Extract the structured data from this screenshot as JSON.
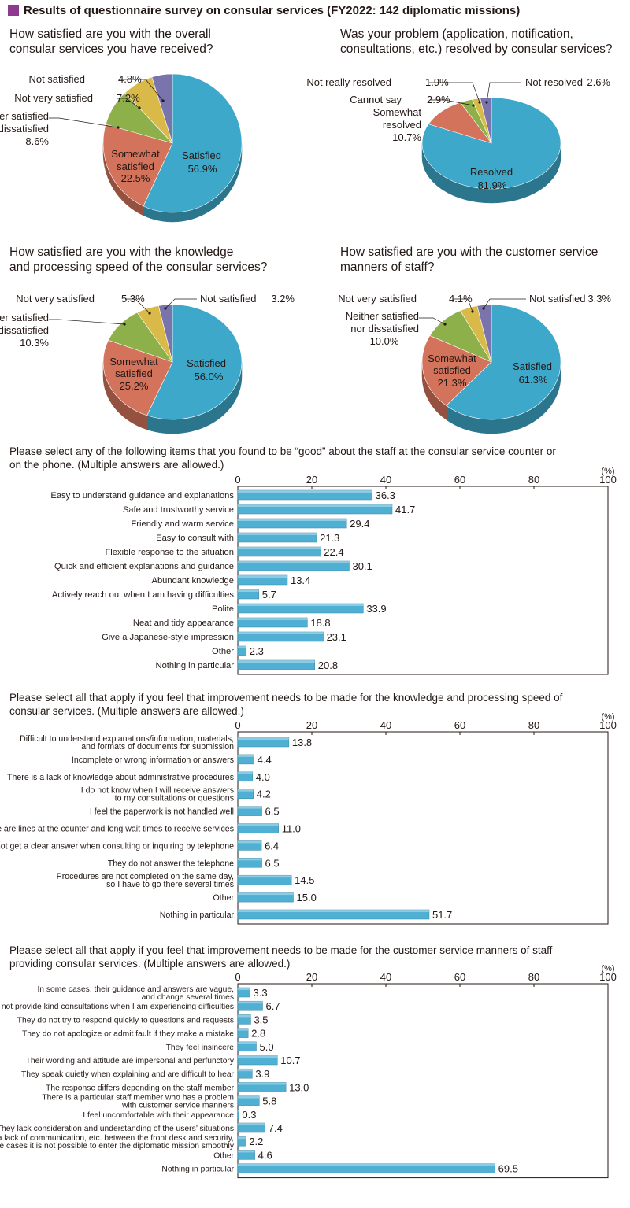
{
  "title": "Results of questionnaire survey on consular services (FY2022: 142 diplomatic missions)",
  "colors": {
    "title_square": "#8e3a8f",
    "pie": [
      "#3da8c9",
      "#d4735b",
      "#8db04a",
      "#d9b948",
      "#7a74ad"
    ],
    "bar": "#4fb0d4"
  },
  "chart_data": [
    {
      "type": "pie",
      "title": "How satisfied are you with the overall consular services you have received?",
      "labels": [
        "Satisfied",
        "Somewhat satisfied",
        "Neither satisfied nor dissatisfied",
        "Not very satisfied",
        "Not satisfied"
      ],
      "values": [
        56.9,
        22.5,
        8.6,
        7.2,
        4.8
      ],
      "unit": "%"
    },
    {
      "type": "pie",
      "title": "Was your problem (application, notification, consultations, etc.) resolved by consular services?",
      "labels": [
        "Resolved",
        "Somewhat resolved",
        "Cannot say",
        "Not really resolved",
        "Not resolved"
      ],
      "values": [
        81.9,
        10.7,
        2.9,
        1.9,
        2.6
      ],
      "unit": "%"
    },
    {
      "type": "pie",
      "title": "How satisfied are you with the knowledge and processing speed of the consular services?",
      "labels": [
        "Satisfied",
        "Somewhat satisfied",
        "Neither satisfied nor dissatisfied",
        "Not very satisfied",
        "Not satisfied"
      ],
      "values": [
        56.0,
        25.2,
        10.3,
        5.3,
        3.2
      ],
      "unit": "%"
    },
    {
      "type": "pie",
      "title": "How satisfied are you with the customer service manners of staff?",
      "labels": [
        "Satisfied",
        "Somewhat satisfied",
        "Neither satisfied nor dissatisfied",
        "Not very satisfied",
        "Not satisfied"
      ],
      "values": [
        61.3,
        21.3,
        10.0,
        4.1,
        3.3
      ],
      "unit": "%"
    },
    {
      "type": "bar",
      "orientation": "horizontal",
      "title": "Please select any of the following items that you found to be “good” about the staff at the consular service counter or on the phone. (Multiple answers are allowed.)",
      "unit": "(%)",
      "xlim": [
        0,
        100
      ],
      "ticks": [
        0,
        20,
        40,
        60,
        80,
        100
      ],
      "categories": [
        "Easy to understand guidance and explanations",
        "Safe and trustworthy service",
        "Friendly and warm service",
        "Easy to consult with",
        "Flexible response to the situation",
        "Quick and efficient explanations and guidance",
        "Abundant knowledge",
        "Actively reach out when I am having difficulties",
        "Polite",
        "Neat and tidy appearance",
        "Give a Japanese-style impression",
        "Other",
        "Nothing in particular"
      ],
      "values": [
        36.3,
        41.7,
        29.4,
        21.3,
        22.4,
        30.1,
        13.4,
        5.7,
        33.9,
        18.8,
        23.1,
        2.3,
        20.8
      ]
    },
    {
      "type": "bar",
      "orientation": "horizontal",
      "title": "Please select all that apply if you feel that improvement needs to be made for the knowledge and processing speed of consular services. (Multiple answers are allowed.)",
      "unit": "(%)",
      "xlim": [
        0,
        100
      ],
      "ticks": [
        0,
        20,
        40,
        60,
        80,
        100
      ],
      "categories": [
        "Difficult to understand explanations/information, materials, and formats of documents for submission",
        "Incomplete or wrong information or answers",
        "There is a lack of knowledge about administrative procedures",
        "I do not know when I will receive answers to my consultations or questions",
        "I feel the paperwork is not handled well",
        "There are lines at the counter and long wait times to receive services",
        "Cannot get a clear answer when consulting or inquiring by telephone",
        "They do not answer the telephone",
        "Procedures are not completed on the same day, so I have to go there several times",
        "Other",
        "Nothing in particular"
      ],
      "values": [
        13.8,
        4.4,
        4.0,
        4.2,
        6.5,
        11.0,
        6.4,
        6.5,
        14.5,
        15.0,
        51.7
      ]
    },
    {
      "type": "bar",
      "orientation": "horizontal",
      "title": "Please select all that apply if you feel that improvement needs to be made for the customer service manners of staff providing consular services. (Multiple answers are allowed.)",
      "unit": "(%)",
      "xlim": [
        0,
        100
      ],
      "ticks": [
        0,
        20,
        40,
        60,
        80,
        100
      ],
      "categories": [
        "In some cases, their guidance and answers are vague, and change several times",
        "They do not provide kind consultations when I am experiencing difficulties",
        "They do not try to respond quickly to questions and requests",
        "They do not apologize or admit fault if they make a mistake",
        "They feel insincere",
        "Their wording and attitude are impersonal and perfunctory",
        "They speak quietly when explaining and are difficult to hear",
        "The response differs depending on the staff member",
        "There is a particular staff member who has a problem with customer service manners",
        "I feel uncomfortable with their appearance",
        "They lack consideration and understanding of the users’ situations",
        "Due to a lack of communication, etc. between the front desk and security, in some cases it is not possible to enter the diplomatic mission smoothly",
        "Other",
        "Nothing in particular"
      ],
      "values": [
        3.3,
        6.7,
        3.5,
        2.8,
        5.0,
        10.7,
        3.9,
        13.0,
        5.8,
        0.3,
        7.4,
        2.2,
        4.6,
        69.5
      ]
    }
  ]
}
